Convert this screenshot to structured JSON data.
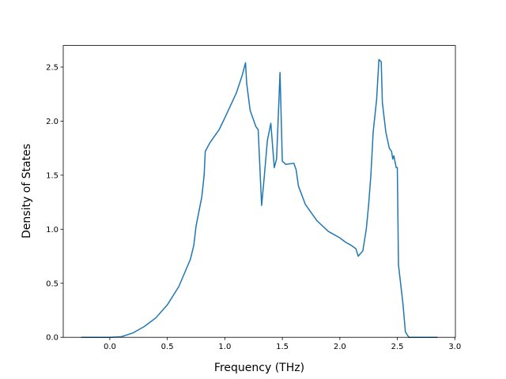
{
  "chart_data": {
    "type": "line",
    "x_label": "Frequency (THz)",
    "y_label": "Density of States",
    "x": [
      -0.25,
      0.0,
      0.1,
      0.2,
      0.3,
      0.4,
      0.5,
      0.6,
      0.7,
      0.73,
      0.75,
      0.8,
      0.82,
      0.83,
      0.87,
      0.95,
      1.0,
      1.1,
      1.15,
      1.18,
      1.19,
      1.22,
      1.27,
      1.29,
      1.32,
      1.34,
      1.37,
      1.4,
      1.43,
      1.45,
      1.48,
      1.5,
      1.53,
      1.6,
      1.62,
      1.64,
      1.7,
      1.8,
      1.9,
      2.0,
      2.05,
      2.1,
      2.14,
      2.16,
      2.2,
      2.23,
      2.25,
      2.27,
      2.29,
      2.32,
      2.34,
      2.36,
      2.37,
      2.4,
      2.43,
      2.45,
      2.46,
      2.47,
      2.49,
      2.5,
      2.51,
      2.55,
      2.57,
      2.6,
      2.85
    ],
    "series": [
      {
        "color": "#1f77b4",
        "values": [
          0,
          0,
          0.005,
          0.04,
          0.1,
          0.18,
          0.3,
          0.47,
          0.72,
          0.85,
          1.03,
          1.3,
          1.5,
          1.72,
          1.8,
          1.92,
          2.03,
          2.26,
          2.42,
          2.54,
          2.35,
          2.1,
          1.95,
          1.92,
          1.22,
          1.45,
          1.82,
          1.98,
          1.57,
          1.65,
          2.45,
          1.63,
          1.6,
          1.61,
          1.55,
          1.4,
          1.23,
          1.08,
          0.98,
          0.92,
          0.88,
          0.85,
          0.82,
          0.75,
          0.8,
          1.0,
          1.22,
          1.5,
          1.9,
          2.2,
          2.57,
          2.55,
          2.17,
          1.9,
          1.75,
          1.72,
          1.65,
          1.68,
          1.57,
          1.57,
          0.67,
          0.3,
          0.05,
          0,
          0
        ]
      }
    ],
    "xlim": [
      -0.405,
      3.005
    ],
    "ylim": [
      0,
      2.7
    ],
    "xticks": [
      {
        "value": 0,
        "label": "0.0"
      },
      {
        "value": 0.5,
        "label": "0.5"
      },
      {
        "value": 1,
        "label": "1.0"
      },
      {
        "value": 1.5,
        "label": "1.5"
      },
      {
        "value": 2,
        "label": "2.0"
      },
      {
        "value": 2.5,
        "label": "2.5"
      },
      {
        "value": 3,
        "label": "3.0"
      }
    ],
    "yticks": [
      {
        "value": 0,
        "label": "0.0"
      },
      {
        "value": 0.5,
        "label": "0.5"
      },
      {
        "value": 1,
        "label": "1.0"
      },
      {
        "value": 1.5,
        "label": "1.5"
      },
      {
        "value": 2,
        "label": "2.0"
      },
      {
        "value": 2.5,
        "label": "2.5"
      }
    ]
  }
}
